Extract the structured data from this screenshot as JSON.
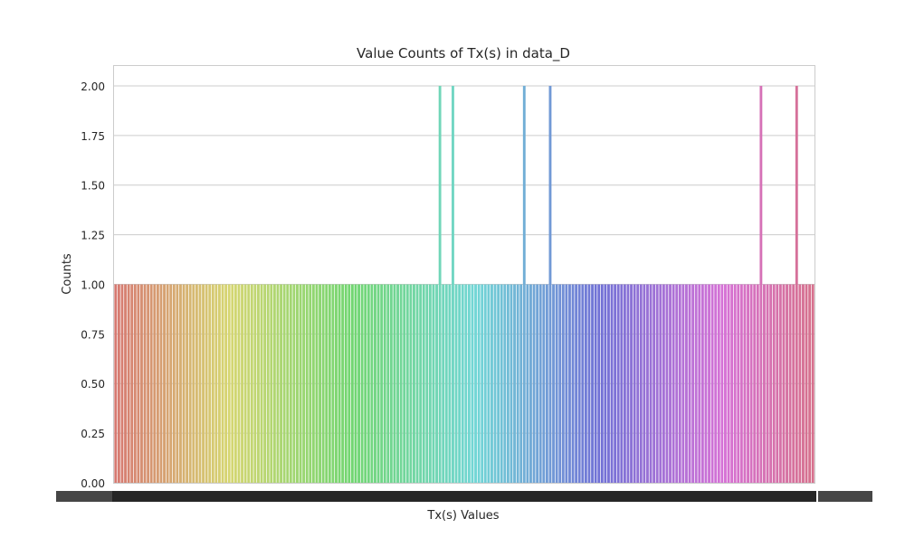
{
  "chart_data": {
    "type": "bar",
    "title": "Value Counts of Tx(s) in data_D",
    "xlabel": "Tx(s) Values",
    "ylabel": "Counts",
    "ylim": [
      0,
      2.1
    ],
    "y_ticks": [
      "0.00",
      "0.25",
      "0.50",
      "0.75",
      "1.00",
      "1.25",
      "1.50",
      "1.75",
      "2.00"
    ],
    "grid": "horizontal",
    "legend": "none",
    "category_count": 216,
    "values": [
      1,
      1,
      1,
      1,
      1,
      1,
      1,
      1,
      1,
      1,
      1,
      1,
      1,
      1,
      1,
      1,
      1,
      1,
      1,
      1,
      1,
      1,
      1,
      1,
      1,
      1,
      1,
      1,
      1,
      1,
      1,
      1,
      1,
      1,
      1,
      1,
      1,
      1,
      1,
      1,
      1,
      1,
      1,
      1,
      1,
      1,
      1,
      1,
      1,
      1,
      1,
      1,
      1,
      1,
      1,
      1,
      1,
      1,
      1,
      1,
      1,
      1,
      1,
      1,
      1,
      1,
      1,
      1,
      1,
      1,
      1,
      1,
      1,
      1,
      1,
      1,
      1,
      1,
      1,
      1,
      1,
      1,
      1,
      1,
      1,
      1,
      1,
      1,
      1,
      1,
      1,
      1,
      1,
      1,
      1,
      1,
      1,
      1,
      1,
      1,
      2,
      1,
      1,
      1,
      2,
      1,
      1,
      1,
      1,
      1,
      1,
      1,
      1,
      1,
      1,
      1,
      1,
      1,
      1,
      1,
      1,
      1,
      1,
      1,
      1,
      1,
      2,
      1,
      1,
      1,
      1,
      1,
      1,
      1,
      2,
      1,
      1,
      1,
      1,
      1,
      1,
      1,
      1,
      1,
      1,
      1,
      1,
      1,
      1,
      1,
      1,
      1,
      1,
      1,
      1,
      1,
      1,
      1,
      1,
      1,
      1,
      1,
      1,
      1,
      1,
      1,
      1,
      1,
      1,
      1,
      1,
      1,
      1,
      1,
      1,
      1,
      1,
      1,
      1,
      1,
      1,
      1,
      1,
      1,
      1,
      1,
      1,
      1,
      1,
      1,
      1,
      1,
      1,
      1,
      1,
      1,
      1,
      1,
      1,
      2,
      1,
      1,
      1,
      1,
      1,
      1,
      1,
      1,
      1,
      1,
      2,
      1,
      1,
      1,
      1,
      1
    ],
    "colors": {
      "axis_frame": "#cccccc",
      "grid": "#cccccc",
      "tick_label_band": "#262626"
    }
  }
}
